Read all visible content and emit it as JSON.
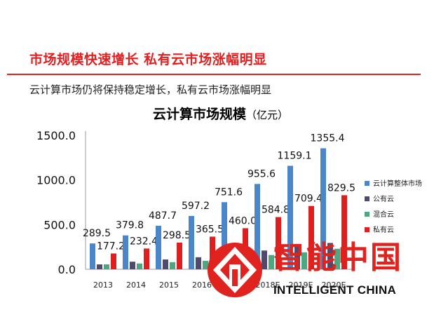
{
  "header": {
    "title": "市场规模快速增长 私有云市场涨幅明显",
    "subtitle": "云计算市场仍将保持稳定增长，私有云市场涨幅明显",
    "accent_color": "#e12121"
  },
  "chart_data": {
    "type": "bar",
    "title": "云计算市场规模",
    "title_unit": "（亿元）",
    "categories": [
      "2013",
      "2014",
      "2015",
      "2016",
      "2017",
      "2018E",
      "2019E",
      "2020E"
    ],
    "series": [
      {
        "name": "云计算整体市场",
        "color": "#4a86c8",
        "values": [
          289.5,
          379.8,
          487.7,
          597.2,
          751.6,
          955.6,
          1159.1,
          1355.4
        ]
      },
      {
        "name": "公有云",
        "color": "#4f4a6e",
        "values": [
          55,
          85,
          110,
          135,
          175,
          210,
          255,
          295
        ]
      },
      {
        "name": "混合云",
        "color": "#4fa782",
        "values": [
          55,
          65,
          80,
          95,
          115,
          160,
          190,
          230
        ]
      },
      {
        "name": "私有云",
        "color": "#e01e1e",
        "values": [
          177.2,
          232.4,
          298.5,
          365.5,
          460.0,
          584.8,
          709.4,
          829.5
        ]
      }
    ],
    "labels": {
      "整体": [
        "289.5",
        "379.8",
        "487.7",
        "597.2",
        "751.6",
        "955.6",
        "1159.1",
        "1355.4"
      ],
      "私有云": [
        "177.2",
        "232.4",
        "298.5",
        "365.5",
        "460.0",
        "584.8",
        "709.4",
        "829.5"
      ]
    },
    "y_ticks": [
      "0.0",
      "500.0",
      "1000.0",
      "1500.0"
    ],
    "y_tick_values": [
      0,
      500,
      1000,
      1500
    ],
    "ylim": [
      0,
      1500
    ],
    "legend_position": "right",
    "grid": false
  },
  "watermark": {
    "cn": "智能中国",
    "en": "INTELLIGENT CHINA",
    "color": "#e0231f"
  }
}
